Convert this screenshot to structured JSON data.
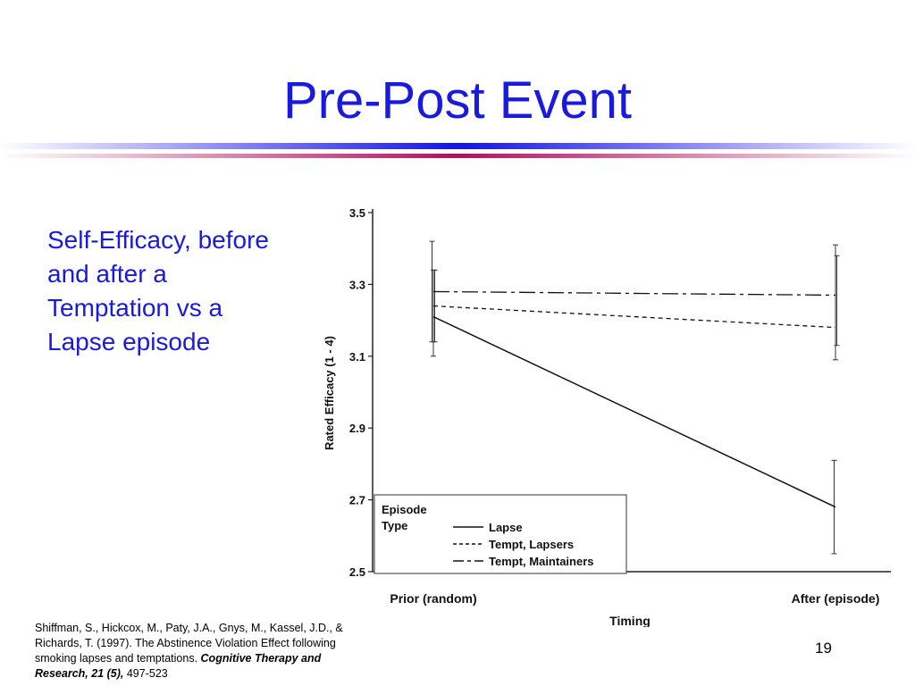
{
  "slide": {
    "title": "Pre-Post Event",
    "lede": "Self-Efficacy, before and after a Temptation vs a Lapse episode",
    "slide_number": "19",
    "colors": {
      "title": "#1a1adf",
      "divider_blue": "#1414e6",
      "divider_red": "#b01060"
    }
  },
  "citation": {
    "authors": "Shiffman, S., Hickcox, M., Paty, J.A., Gnys, M., Kassel, J.D., & Richards, T. (1997). The Abstinence Violation Effect following smoking lapses and temptations.",
    "journal": "Cognitive Therapy and Research, 21 (5),",
    "pages": "497-523"
  },
  "chart_data": {
    "type": "line",
    "xlabel": "Timing",
    "ylabel": "Rated Efficacy (1 - 4)",
    "categories": [
      "Prior (random)",
      "After (episode)"
    ],
    "ylim": [
      2.5,
      3.5
    ],
    "yticks": [
      "2.5",
      "2.7",
      "2.9",
      "3.1",
      "3.3",
      "3.5"
    ],
    "legend": {
      "title_line1": "Episode",
      "title_line2": "Type",
      "placement": "bottom-left"
    },
    "series": [
      {
        "name": "Lapse",
        "values": [
          3.21,
          2.68
        ],
        "style": "solid",
        "error_bars": [
          [
            3.14,
            3.42
          ],
          [
            2.55,
            2.81
          ]
        ]
      },
      {
        "name": "Tempt, Lapsers",
        "values": [
          3.24,
          3.18
        ],
        "style": "dashed",
        "error_bars": [
          [
            3.1,
            3.34
          ],
          [
            3.09,
            3.41
          ]
        ]
      },
      {
        "name": "Tempt, Maintainers",
        "values": [
          3.28,
          3.27
        ],
        "style": "dashdot",
        "error_bars": [
          [
            3.14,
            3.34
          ],
          [
            3.13,
            3.38
          ]
        ]
      }
    ]
  }
}
